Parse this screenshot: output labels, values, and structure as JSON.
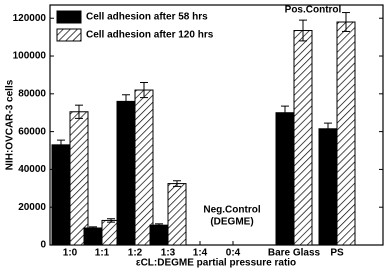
{
  "chart_data": {
    "type": "bar",
    "y_label": "NIH:OVCAR-3 cells",
    "x_label": "εCL:DEGME partial pressure ratio",
    "categories": [
      "1:0",
      "1:1",
      "1:2",
      "1:3",
      "1:4",
      "0:4",
      "Bare Glass",
      "PS"
    ],
    "series": [
      {
        "name": "Cell adhesion after 58 hrs",
        "color": "#000000",
        "pattern": "solid",
        "values": [
          53000,
          9000,
          76000,
          10500,
          null,
          null,
          70000,
          61500
        ],
        "errors": [
          2500,
          600,
          3500,
          700,
          null,
          null,
          3500,
          3000
        ]
      },
      {
        "name": "Cell adhesion after 120 hrs",
        "color": "#000000",
        "pattern": "hatch",
        "values": [
          70500,
          13000,
          82000,
          32500,
          null,
          null,
          113500,
          118000
        ],
        "errors": [
          3500,
          900,
          4000,
          1500,
          null,
          null,
          5500,
          5000
        ]
      }
    ],
    "annotations": [
      "Pos.Control",
      "Neg.Control",
      "(DEGME)"
    ],
    "ylim": [
      0,
      127000
    ],
    "yticks": [
      0,
      20000,
      40000,
      60000,
      80000,
      100000,
      120000
    ],
    "legend": "upper left"
  }
}
